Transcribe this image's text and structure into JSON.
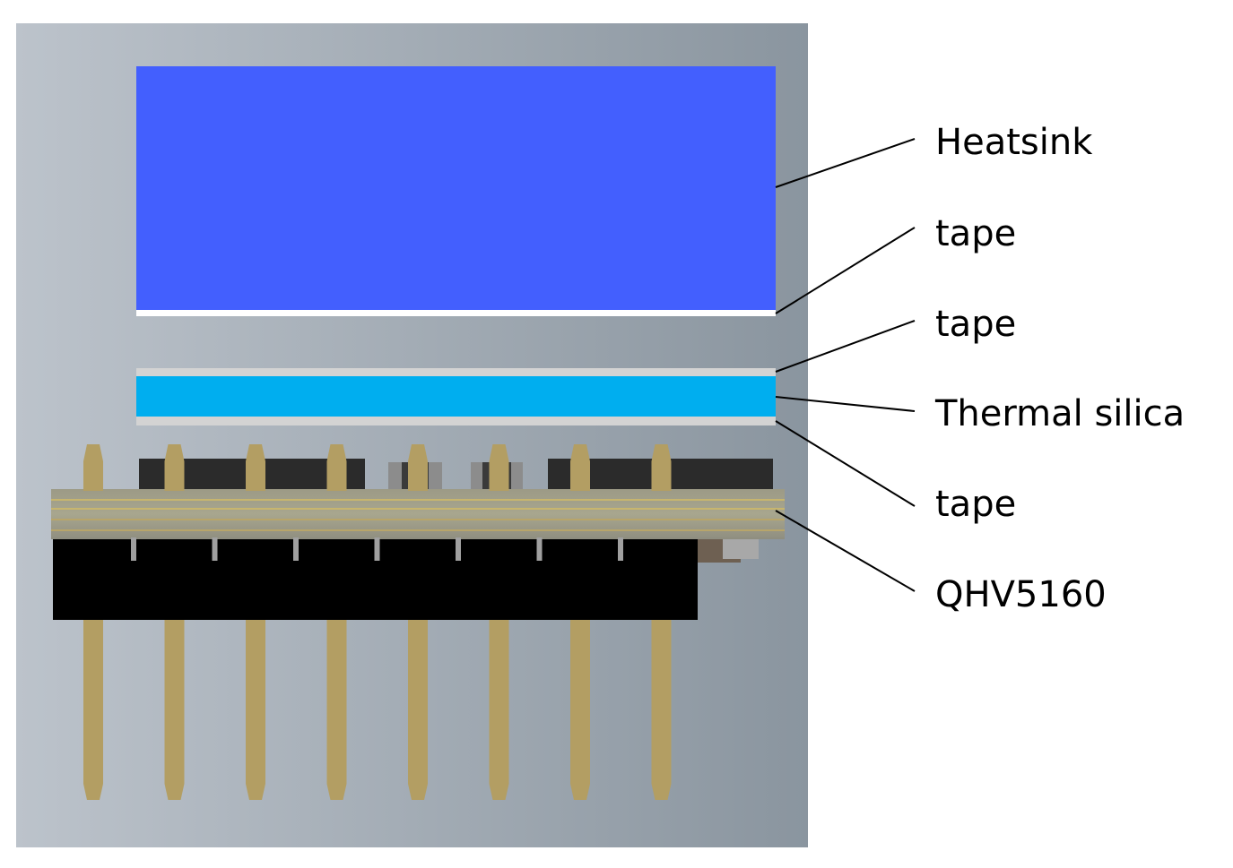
{
  "diagram": {
    "layers": [
      {
        "id": "heatsink",
        "label": "Heatsink",
        "color": "#435FFE"
      },
      {
        "id": "tape-top",
        "label": "tape",
        "color": "#FFFFFF"
      },
      {
        "id": "tape-middle",
        "label": "tape",
        "color": "#D3D3D3"
      },
      {
        "id": "thermal-silica",
        "label": "Thermal silica",
        "color": "#00AEEF"
      },
      {
        "id": "tape-bottom",
        "label": "tape",
        "color": "#D3D3D3"
      },
      {
        "id": "module",
        "label": "QHV5160",
        "color": "#000000"
      }
    ],
    "pin_color": "#B39E63",
    "pin_count": 8,
    "background_gradient": [
      "#BCC3CB",
      "#8A959F"
    ]
  }
}
